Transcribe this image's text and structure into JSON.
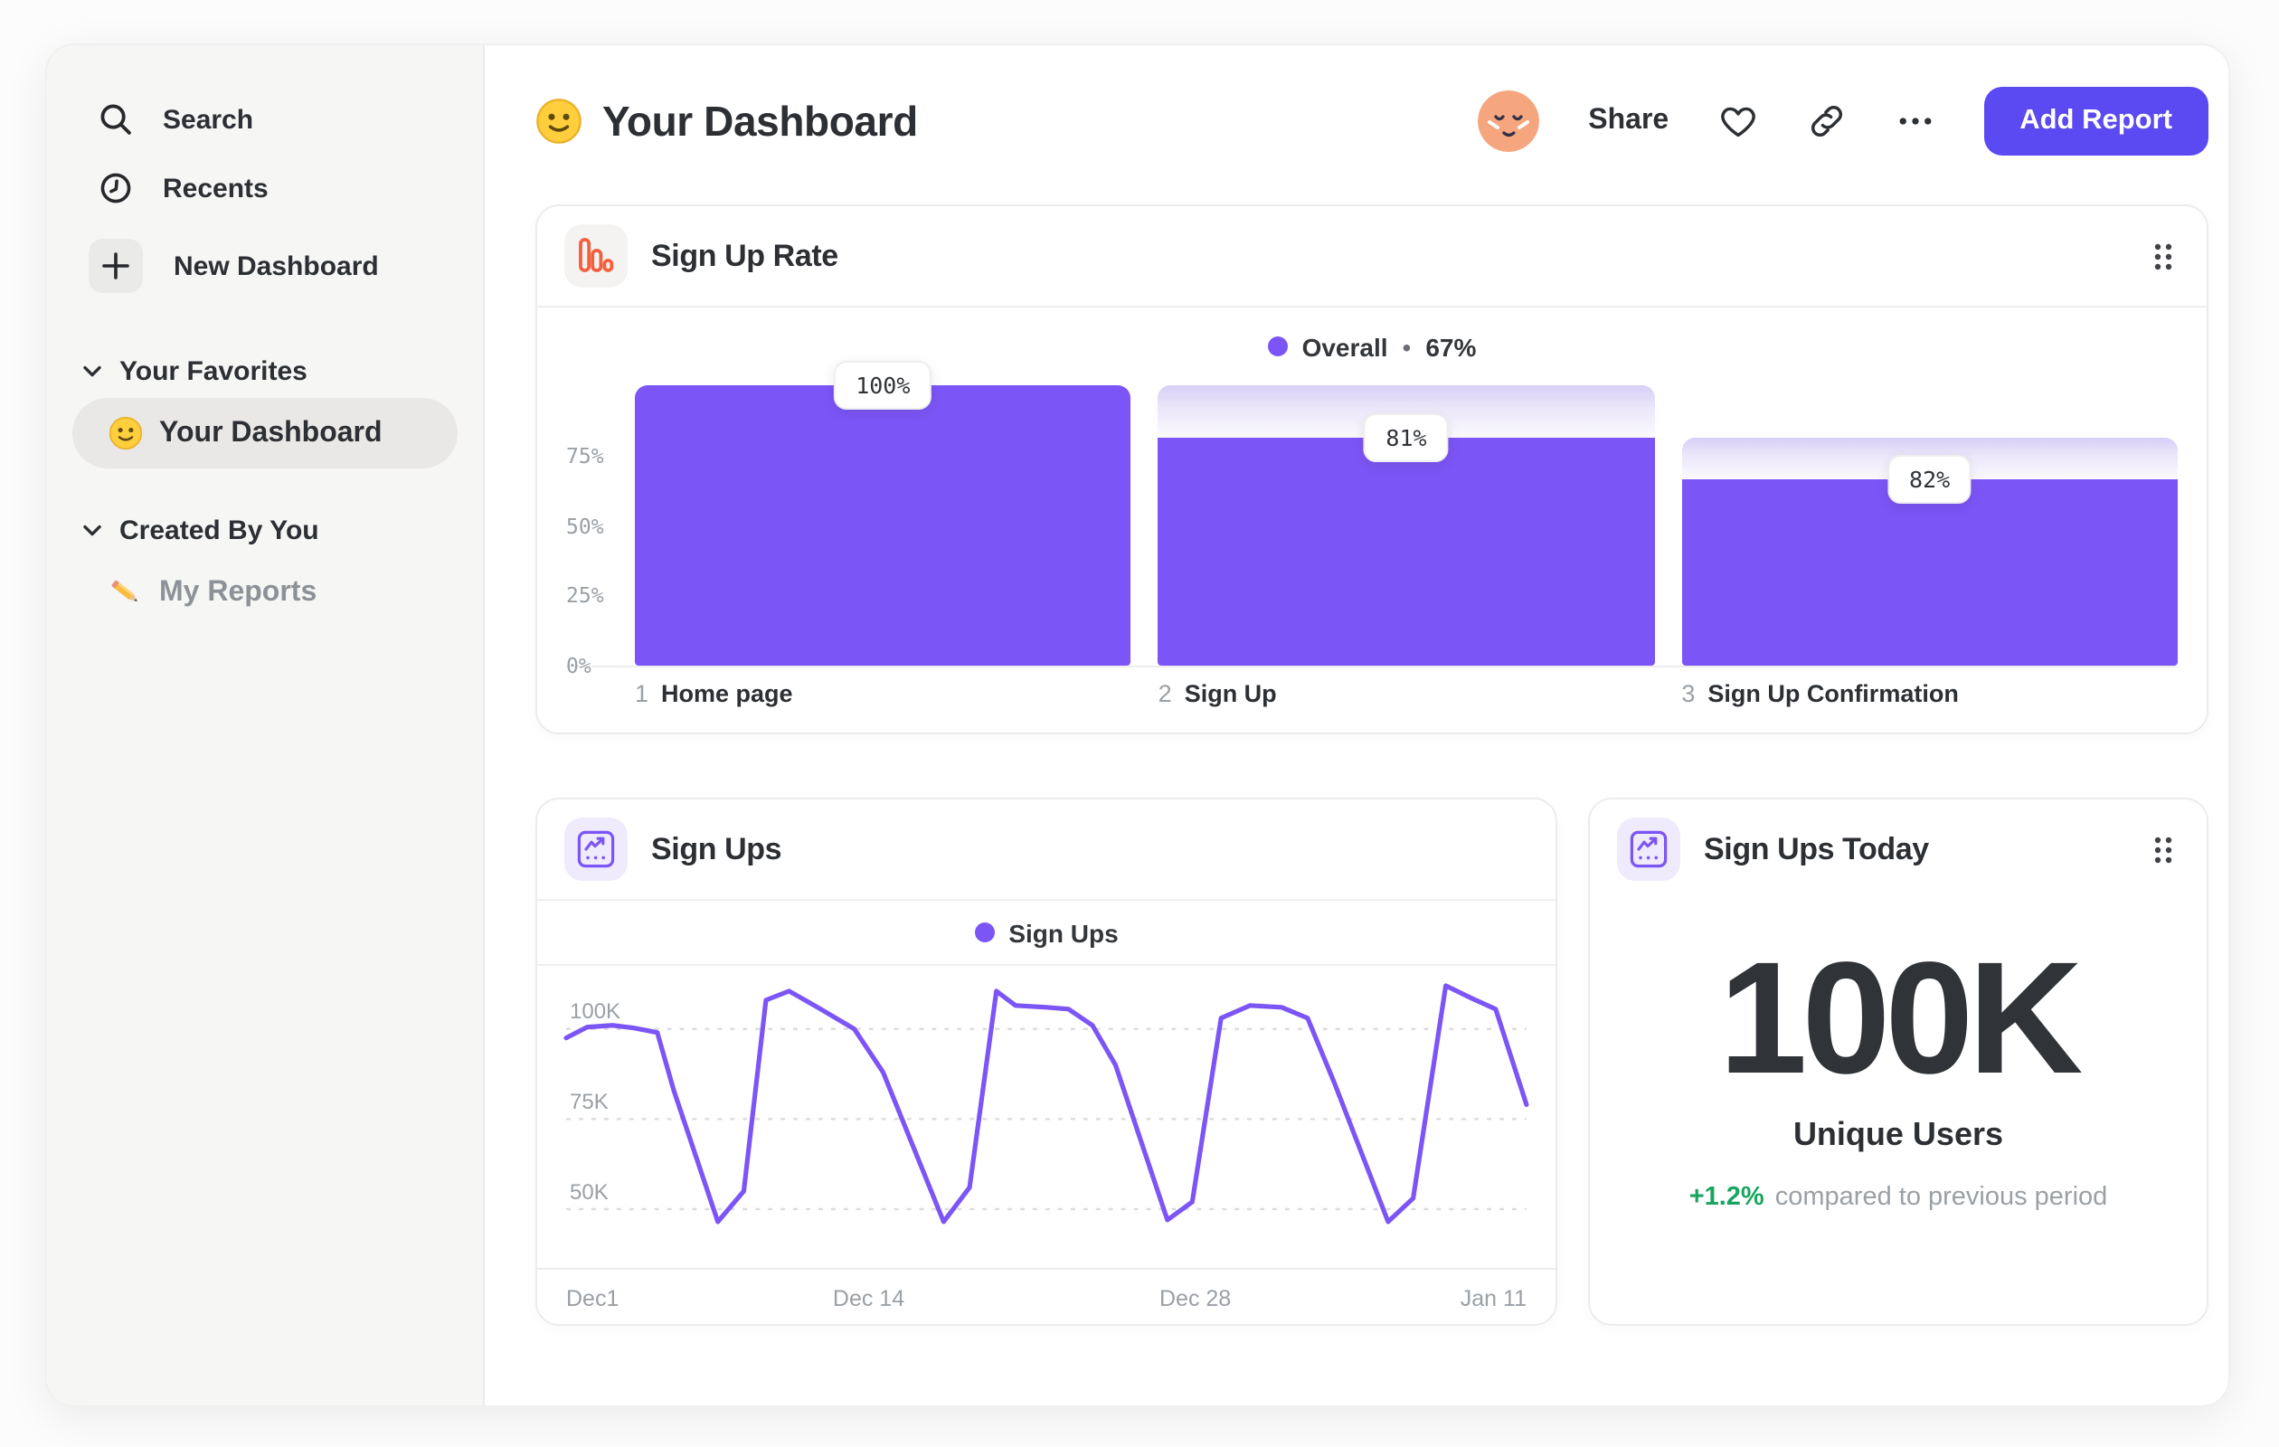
{
  "theme": {
    "accent": "#7c55f6",
    "accent_gradient_top": "#d8cff7",
    "button": "#5b49f1",
    "green": "#17a55f",
    "orange": "#f3603e",
    "text_dark": "#2c2f33",
    "text_gray": "#9aa0a6"
  },
  "sidebar": {
    "nav": [
      {
        "label": "Search",
        "icon": "search-icon"
      },
      {
        "label": "Recents",
        "icon": "clock-icon"
      },
      {
        "label": "New Dashboard",
        "icon": "plus-icon"
      }
    ],
    "sections": [
      {
        "label": "Your Favorites",
        "items": [
          {
            "label": "Your Dashboard",
            "icon": "smiley-emoji",
            "selected": true
          }
        ]
      },
      {
        "label": "Created By You",
        "items": [
          {
            "label": "My Reports",
            "icon": "pencil-emoji",
            "selected": false
          }
        ]
      }
    ]
  },
  "header": {
    "title": "Your Dashboard",
    "share_label": "Share",
    "add_report_label": "Add Report"
  },
  "cards": {
    "funnel": {
      "title": "Sign Up Rate"
    },
    "line": {
      "title": "Sign Ups"
    },
    "stat": {
      "title": "Sign Ups Today",
      "value": "100K",
      "label": "Unique Users",
      "delta": "+1.2%",
      "delta_note": "compared to previous period"
    }
  },
  "chart_data": [
    {
      "type": "bar",
      "title": "Sign Up Rate",
      "legend": {
        "label": "Overall",
        "separator": "•",
        "value": "67%"
      },
      "categories": [
        "Home page",
        "Sign Up",
        "Sign Up Confirmation"
      ],
      "values": [
        100,
        81,
        82
      ],
      "value_labels": [
        "100%",
        "81%",
        "82%"
      ],
      "note": "values are per-step conversion rates; bar fill is cumulative of previous steps",
      "ylim": [
        0,
        100
      ],
      "yticks": [
        {
          "label": "75%",
          "v": 75
        },
        {
          "label": "50%",
          "v": 50
        },
        {
          "label": "25%",
          "v": 25
        },
        {
          "label": "0%",
          "v": 0
        }
      ]
    },
    {
      "type": "line",
      "title": "Sign Ups",
      "legend": "Sign Ups",
      "unit": "K",
      "ylim": [
        33,
        116
      ],
      "grid": "dashed-horizontal",
      "y_gridlines": [
        {
          "label": "100K",
          "v": 100
        },
        {
          "label": "75K",
          "v": 75
        },
        {
          "label": "50K",
          "v": 50
        }
      ],
      "x_ticks": [
        {
          "label": "Dec1",
          "pos": 0
        },
        {
          "label": "Dec 14",
          "pos": 0.315
        },
        {
          "label": "Dec 28",
          "pos": 0.655
        },
        {
          "label": "Jan 11",
          "pos": 1
        }
      ],
      "points": [
        [
          0.0,
          97.5
        ],
        [
          0.022,
          100.5
        ],
        [
          0.048,
          101
        ],
        [
          0.07,
          100.3
        ],
        [
          0.095,
          99
        ],
        [
          0.112,
          83
        ],
        [
          0.158,
          46.5
        ],
        [
          0.185,
          55
        ],
        [
          0.208,
          108
        ],
        [
          0.232,
          110.5
        ],
        [
          0.262,
          106
        ],
        [
          0.3,
          100
        ],
        [
          0.33,
          88
        ],
        [
          0.393,
          46.5
        ],
        [
          0.42,
          56
        ],
        [
          0.448,
          110.5
        ],
        [
          0.468,
          106.5
        ],
        [
          0.5,
          106
        ],
        [
          0.523,
          105.5
        ],
        [
          0.548,
          101
        ],
        [
          0.572,
          90
        ],
        [
          0.626,
          47
        ],
        [
          0.652,
          52
        ],
        [
          0.682,
          103
        ],
        [
          0.712,
          106.5
        ],
        [
          0.745,
          106
        ],
        [
          0.772,
          103
        ],
        [
          0.8,
          85
        ],
        [
          0.856,
          46.5
        ],
        [
          0.882,
          53
        ],
        [
          0.916,
          112
        ],
        [
          0.943,
          108.5
        ],
        [
          0.968,
          105.5
        ],
        [
          1.0,
          79
        ]
      ]
    }
  ]
}
